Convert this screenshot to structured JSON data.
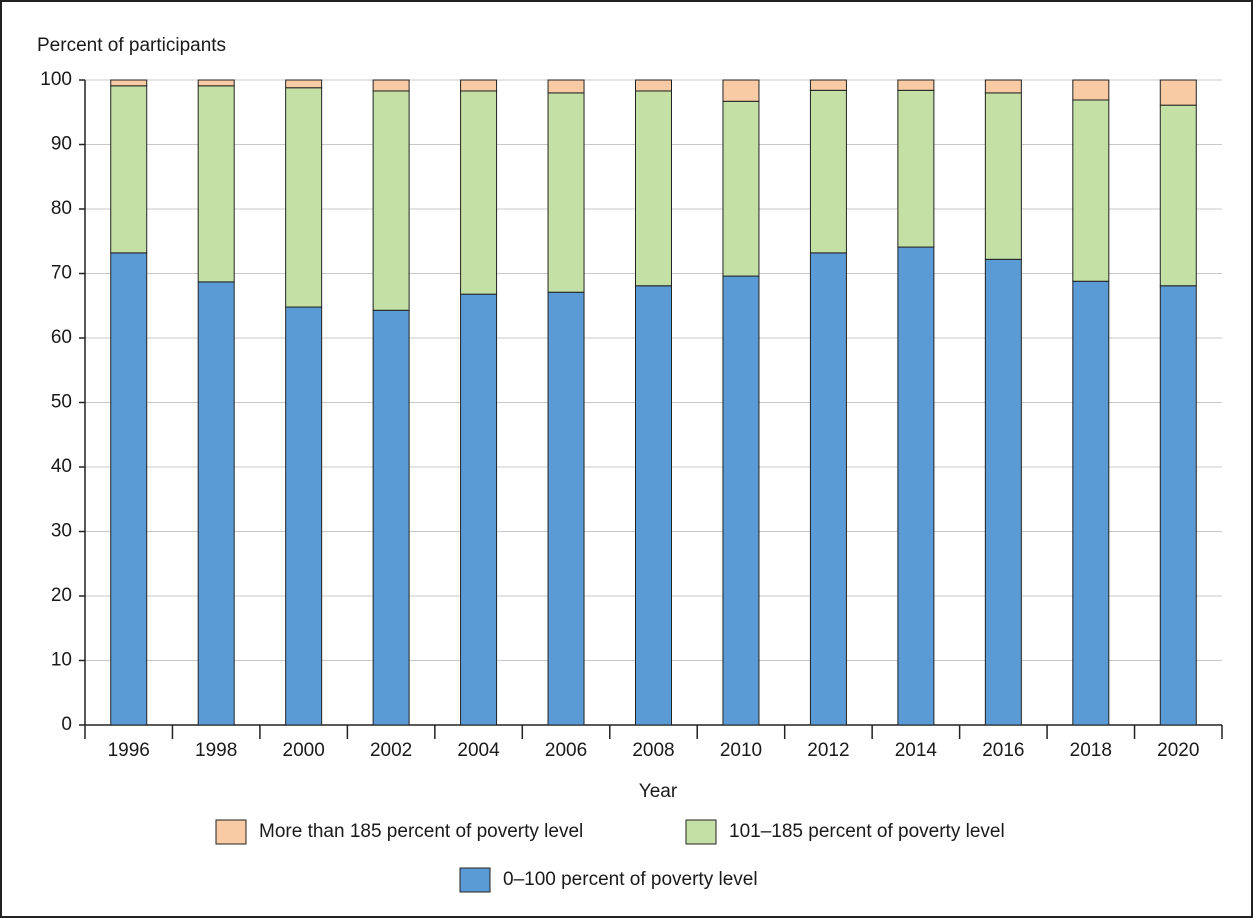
{
  "chart_data": {
    "type": "stacked-bar",
    "y_label": "Percent of participants",
    "x_label": "Year",
    "categories": [
      "1996",
      "1998",
      "2000",
      "2002",
      "2004",
      "2006",
      "2008",
      "2010",
      "2012",
      "2014",
      "2016",
      "2018",
      "2020"
    ],
    "series": [
      {
        "name": "0–100 percent of poverty level",
        "color": "#5b9bd5",
        "values": [
          73.2,
          68.7,
          64.8,
          64.3,
          66.8,
          67.1,
          68.1,
          69.6,
          73.2,
          74.1,
          72.2,
          68.8,
          68.1
        ]
      },
      {
        "name": "101–185 percent of poverty level",
        "color": "#c5e0a5",
        "values": [
          25.9,
          30.4,
          34.0,
          34.0,
          31.5,
          30.9,
          30.2,
          27.1,
          25.2,
          24.3,
          25.8,
          28.1,
          28.0
        ]
      },
      {
        "name": "More than 185 percent of poverty level",
        "color": "#f8cba5",
        "values": [
          0.9,
          0.9,
          1.2,
          1.7,
          1.7,
          2.0,
          1.7,
          3.3,
          1.6,
          1.6,
          2.0,
          3.1,
          3.9
        ]
      }
    ],
    "ylim": [
      0,
      100
    ],
    "yticks": [
      0,
      10,
      20,
      30,
      40,
      50,
      60,
      70,
      80,
      90,
      100
    ],
    "grid": true
  }
}
